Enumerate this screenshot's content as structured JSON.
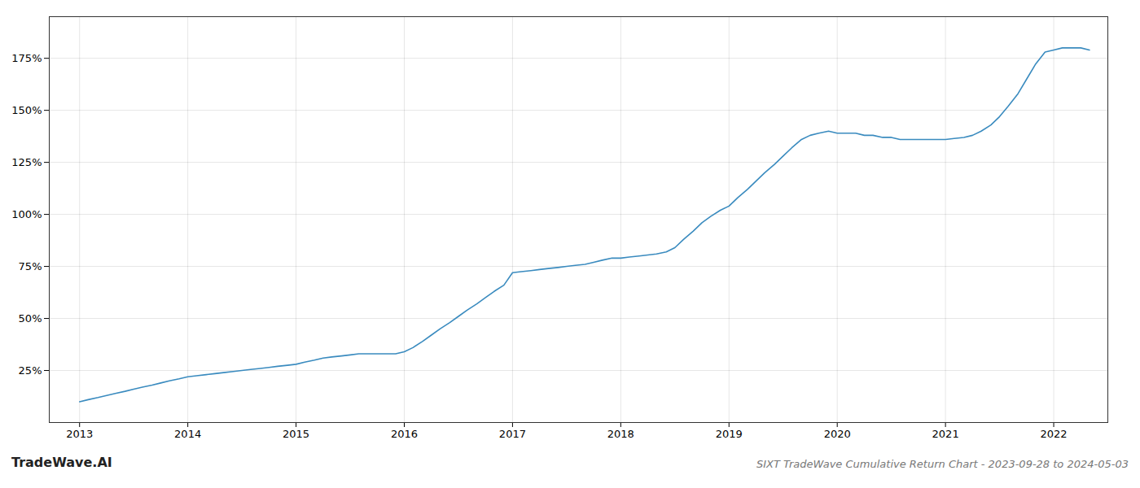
{
  "chart_data": {
    "type": "line",
    "title": "SIXT TradeWave Cumulative Return Chart - 2023-09-28 to 2024-05-03",
    "annotations": [
      "TradeWave.AI"
    ],
    "color": "#3a8bbf",
    "x": [
      2013.0,
      2013.08,
      2013.17,
      2013.25,
      2013.33,
      2013.42,
      2013.5,
      2013.58,
      2013.67,
      2013.75,
      2013.83,
      2013.92,
      2014.0,
      2014.08,
      2014.17,
      2014.25,
      2014.33,
      2014.42,
      2014.5,
      2014.58,
      2014.67,
      2014.75,
      2014.83,
      2014.92,
      2015.0,
      2015.08,
      2015.17,
      2015.25,
      2015.33,
      2015.42,
      2015.5,
      2015.58,
      2015.67,
      2015.75,
      2015.83,
      2015.92,
      2016.0,
      2016.08,
      2016.17,
      2016.25,
      2016.33,
      2016.42,
      2016.5,
      2016.58,
      2016.67,
      2016.75,
      2016.83,
      2016.92,
      2017.0,
      2017.08,
      2017.17,
      2017.25,
      2017.33,
      2017.42,
      2017.5,
      2017.58,
      2017.67,
      2017.75,
      2017.83,
      2017.92,
      2018.0,
      2018.08,
      2018.17,
      2018.25,
      2018.33,
      2018.42,
      2018.5,
      2018.58,
      2018.67,
      2018.75,
      2018.83,
      2018.92,
      2019.0,
      2019.08,
      2019.17,
      2019.25,
      2019.33,
      2019.42,
      2019.5,
      2019.58,
      2019.67,
      2019.75,
      2019.83,
      2019.92,
      2020.0,
      2020.08,
      2020.17,
      2020.25,
      2020.33,
      2020.42,
      2020.5,
      2020.58,
      2020.67,
      2020.75,
      2020.83,
      2020.92,
      2021.0,
      2021.08,
      2021.17,
      2021.25,
      2021.33,
      2021.42,
      2021.5,
      2021.58,
      2021.67,
      2021.75,
      2021.83,
      2021.92,
      2022.0,
      2022.08,
      2022.17,
      2022.25,
      2022.33
    ],
    "values": [
      10,
      11,
      12,
      13,
      14,
      15,
      16,
      17,
      18,
      19,
      20,
      21,
      22,
      22.5,
      23,
      23.5,
      24,
      24.5,
      25,
      25.5,
      26,
      26.5,
      27,
      27.5,
      28,
      29,
      30,
      31,
      31.5,
      32,
      32.5,
      33,
      33,
      33,
      33,
      33,
      34,
      36,
      39,
      42,
      45,
      48,
      51,
      54,
      57,
      60,
      63,
      66,
      72,
      72.5,
      73,
      73.5,
      74,
      74.5,
      75,
      75.5,
      76,
      77,
      78,
      79,
      79,
      79.5,
      80,
      80.5,
      81,
      82,
      84,
      88,
      92,
      96,
      99,
      102,
      104,
      108,
      112,
      116,
      120,
      124,
      128,
      132,
      136,
      138,
      139,
      140,
      139,
      139,
      139,
      138,
      138,
      137,
      137,
      136,
      136,
      136,
      136,
      136,
      136,
      136.5,
      137,
      138,
      140,
      143,
      147,
      152,
      158,
      165,
      172,
      178,
      179,
      180,
      180,
      180,
      179
    ],
    "xlim": [
      2012.72,
      2022.5
    ],
    "xticks": [
      2013,
      2014,
      2015,
      2016,
      2017,
      2018,
      2019,
      2020,
      2021,
      2022
    ],
    "ylim": [
      0,
      195
    ],
    "yticks": [
      {
        "value": 25,
        "label": "25%"
      },
      {
        "value": 50,
        "label": "50%"
      },
      {
        "value": 75,
        "label": "75%"
      },
      {
        "value": 100,
        "label": "100%"
      },
      {
        "value": 125,
        "label": "125%"
      },
      {
        "value": 150,
        "label": "150%"
      },
      {
        "value": 175,
        "label": "175%"
      }
    ],
    "grid": true
  }
}
